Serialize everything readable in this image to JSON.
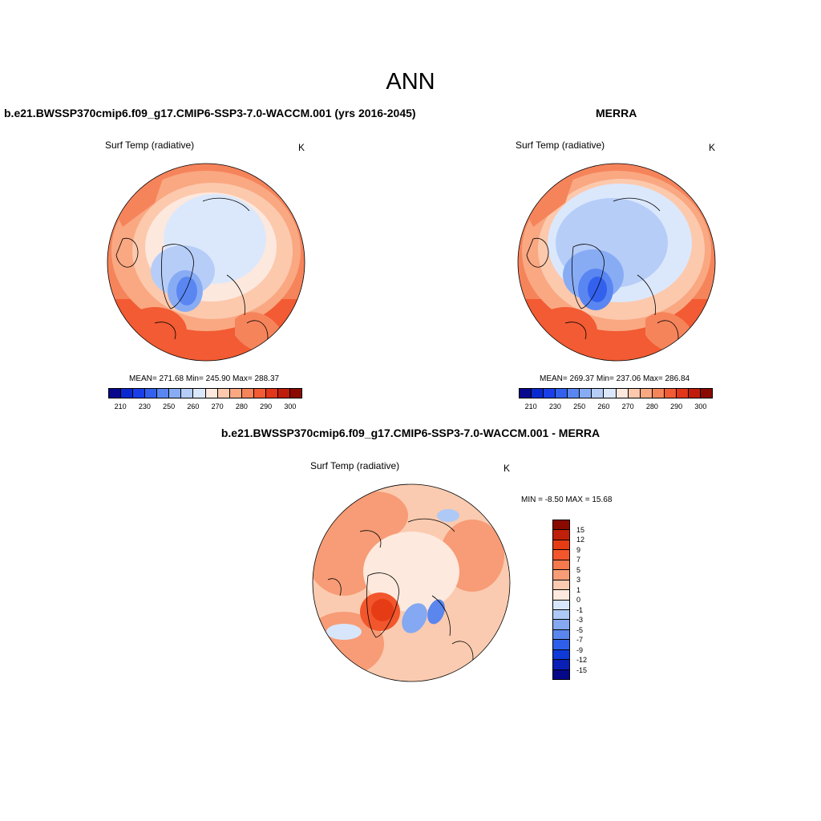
{
  "title": "ANN",
  "panels": [
    {
      "title": "b.e21.BWSSP370cmip6.f09_g17.CMIP6-SSP3-7.0-WACCM.001 (yrs 2016-2045)",
      "variable": "Surf Temp (radiative)",
      "units": "K",
      "stats": "MEAN= 271.68  Min= 245.90  Max= 288.37"
    },
    {
      "title": "MERRA",
      "variable": "Surf Temp (radiative)",
      "units": "K",
      "stats": "MEAN= 269.37  Min= 237.06  Max= 286.84"
    },
    {
      "title": "b.e21.BWSSP370cmip6.f09_g17.CMIP6-SSP3-7.0-WACCM.001 - MERRA",
      "variable": "Surf Temp (radiative)",
      "units": "K",
      "stats": "MIN =  -8.50 MAX =  15.68"
    }
  ],
  "colorbar_abs": {
    "tick_labels": [
      "210",
      "230",
      "250",
      "260",
      "270",
      "280",
      "290",
      "300"
    ],
    "colors": [
      "#08088c",
      "#0a2ad0",
      "#1a3fe8",
      "#3361ee",
      "#5a86f2",
      "#88acf4",
      "#b6cdf8",
      "#dbe8fc",
      "#fde8de",
      "#fcc9ad",
      "#f9a882",
      "#f6845b",
      "#f25b33",
      "#e2361a",
      "#bf1c0c",
      "#8a0a00"
    ]
  },
  "colorbar_diff": {
    "tick_labels": [
      "15",
      "12",
      "9",
      "7",
      "5",
      "3",
      "1",
      "0",
      "-1",
      "-3",
      "-5",
      "-7",
      "-9",
      "-12",
      "-15"
    ],
    "colors": [
      "#8a0a00",
      "#c0200a",
      "#e63c16",
      "#f2562c",
      "#f5794e",
      "#f79c76",
      "#facbb0",
      "#fde9dd",
      "#d8e6fb",
      "#aec9f6",
      "#84a8f2",
      "#5a86ee",
      "#2f5fea",
      "#0f3ad8",
      "#0a1fb6",
      "#06088a"
    ]
  }
}
